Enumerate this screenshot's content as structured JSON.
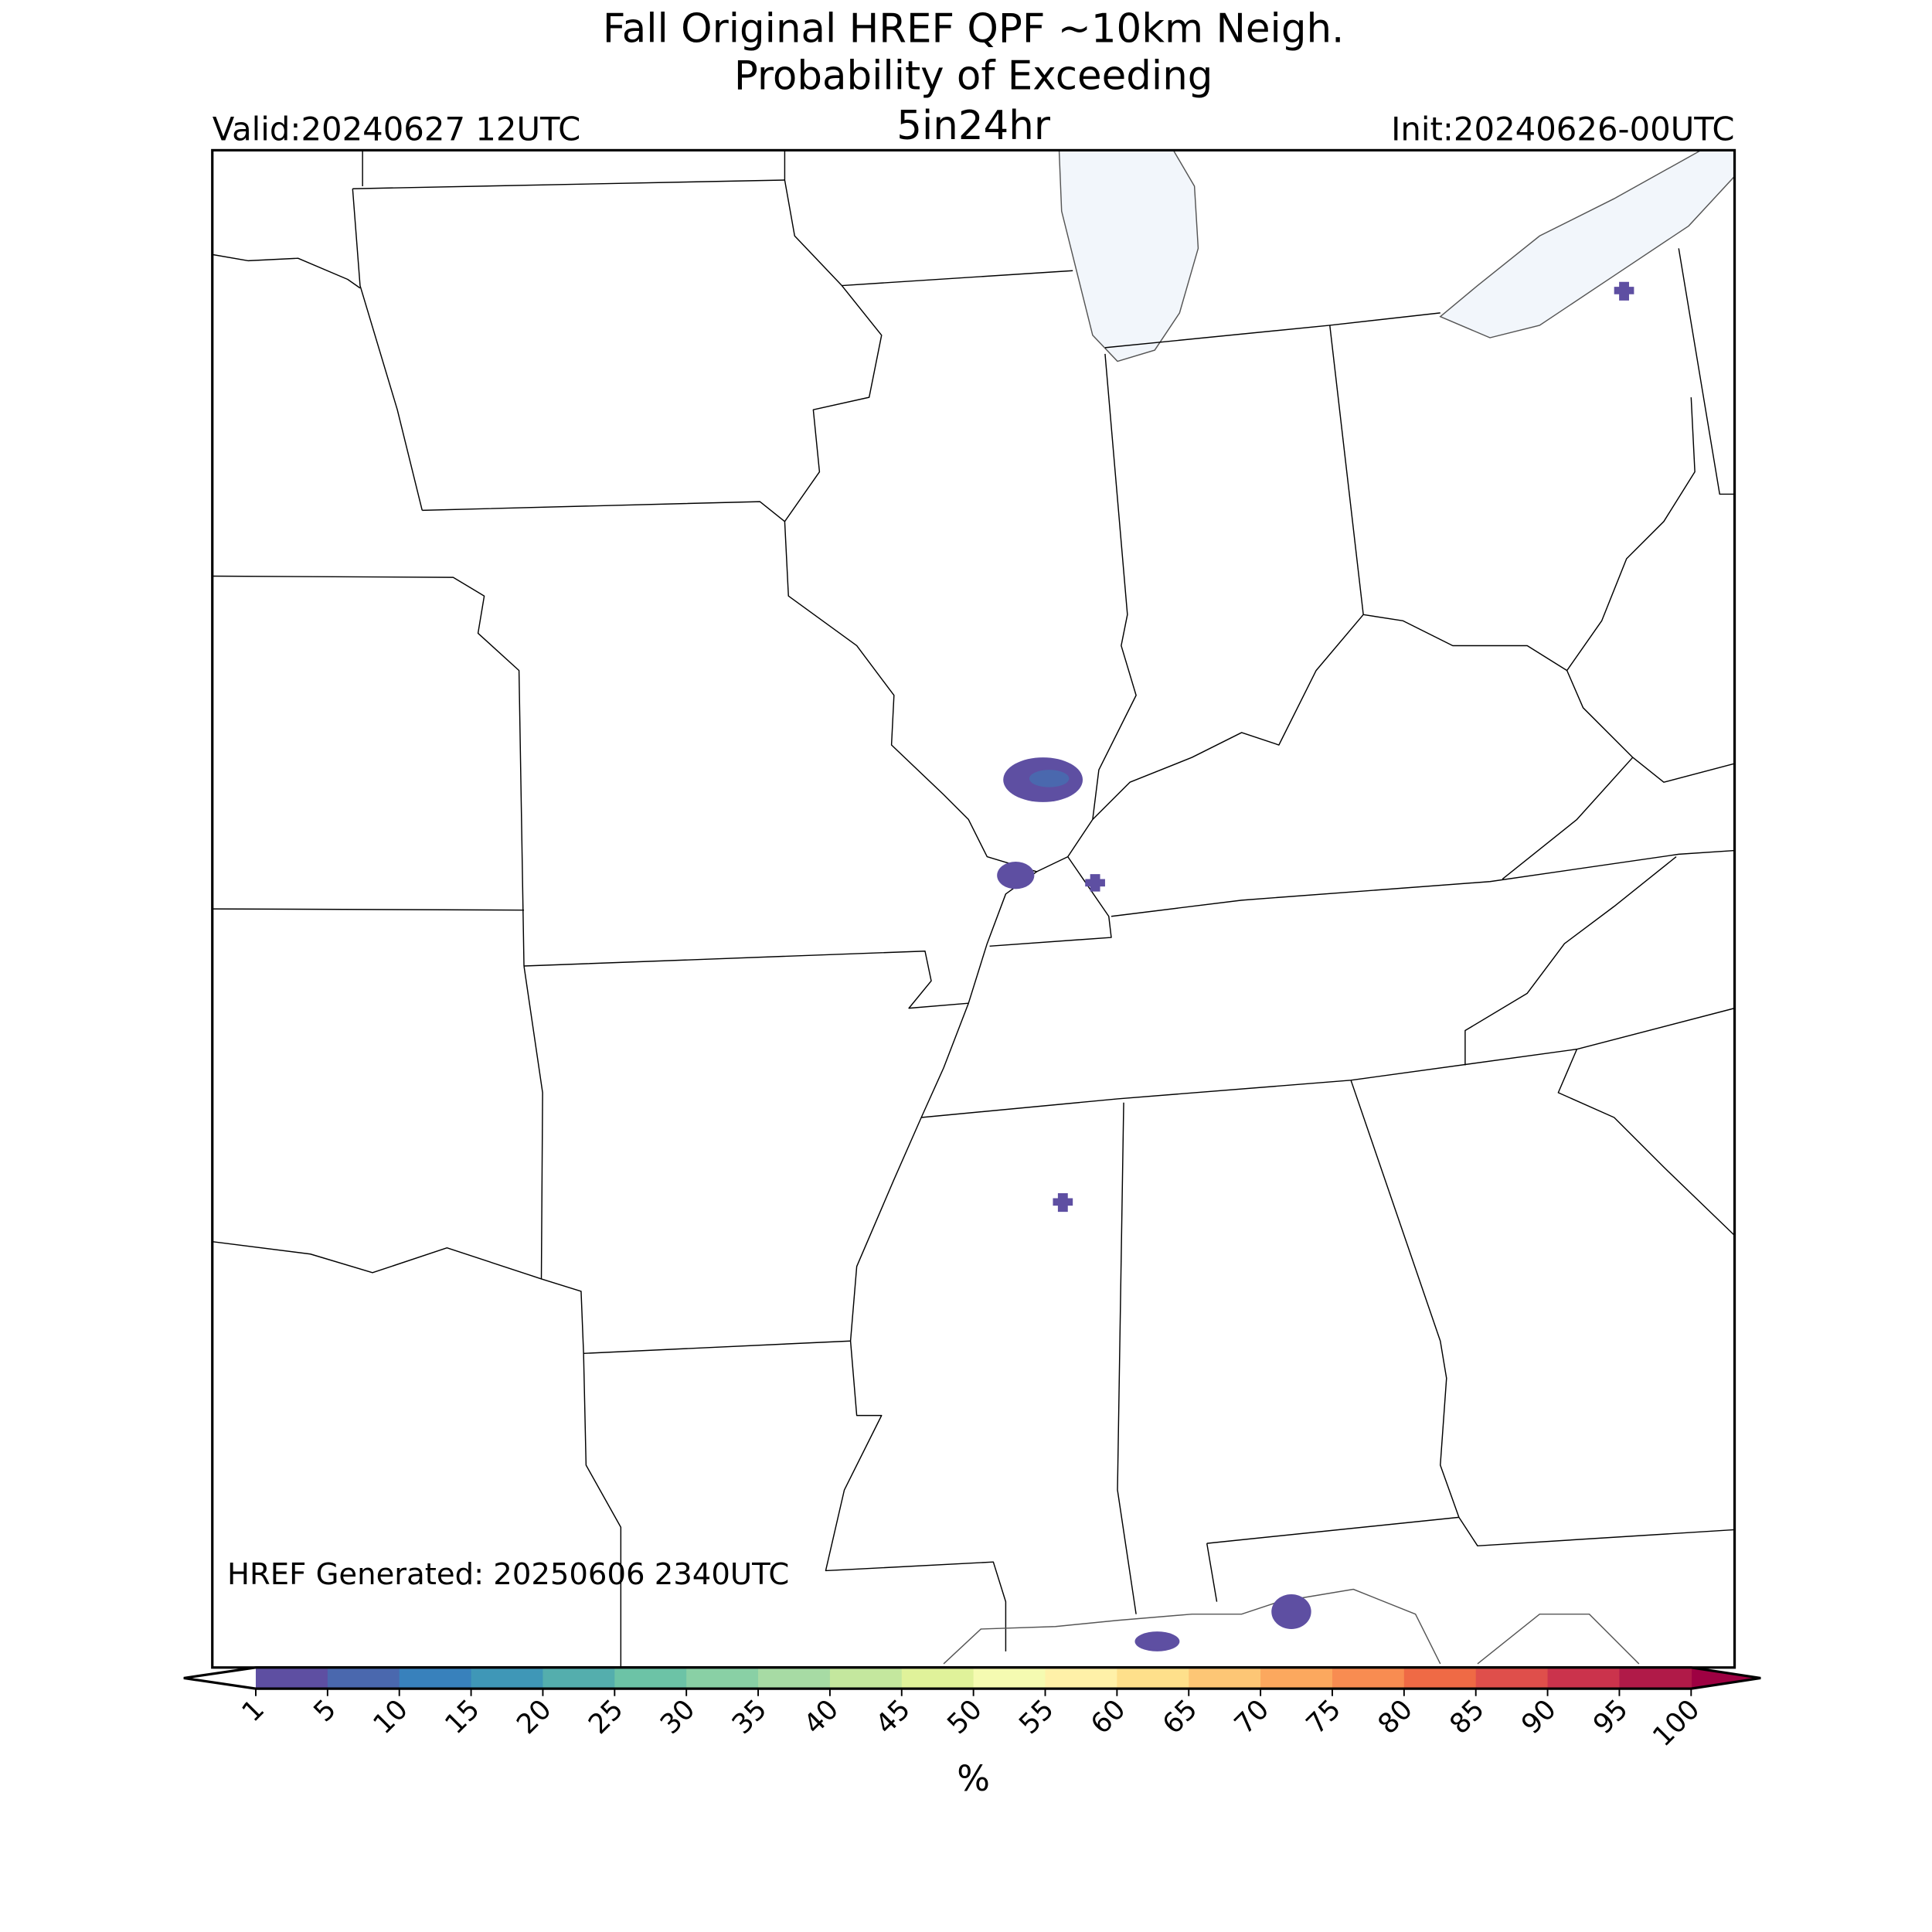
{
  "header": {
    "title": "Fall Original HREF QPF ~10km Neigh.",
    "subtitle": "Probability of Exceeding",
    "threshold": "5in24hr",
    "valid": "Valid:20240627 12UTC",
    "init": "Init:20240626-00UTC"
  },
  "map": {
    "note": "HREF Generated: 20250606 2340UTC"
  },
  "colorbar": {
    "label": "%",
    "ticks": [
      1,
      5,
      10,
      15,
      20,
      25,
      30,
      35,
      40,
      45,
      50,
      55,
      60,
      65,
      70,
      75,
      80,
      85,
      90,
      95,
      100
    ],
    "colors": [
      "#5e4fa2",
      "#4a68ae",
      "#3881bc",
      "#3f97b7",
      "#54aead",
      "#6cc3a6",
      "#89d0a5",
      "#a7dba4",
      "#c4e79e",
      "#e0f29a",
      "#f5fbb1",
      "#fff1a8",
      "#fee08b",
      "#fdc675",
      "#fca85e",
      "#f88c51",
      "#ef6a45",
      "#df4f4b",
      "#cb334c",
      "#b01a48"
    ],
    "under_color": "#ffffff",
    "over_color": "#9e0142"
  }
}
